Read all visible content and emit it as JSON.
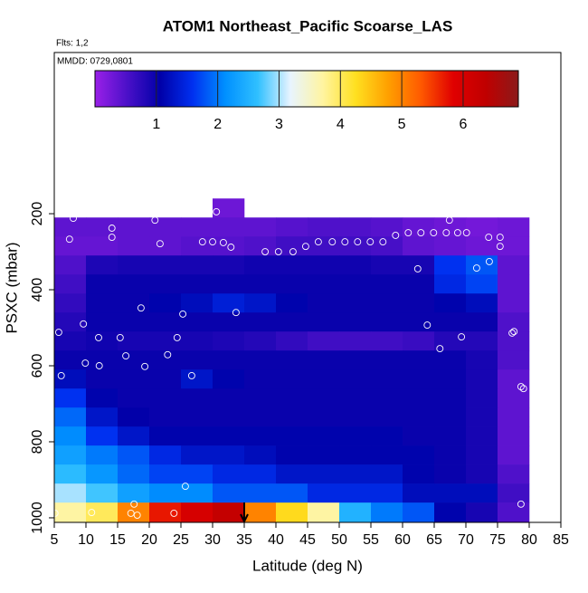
{
  "chart_data": {
    "type": "heatmap",
    "title": "ATOM1 Northeast_Pacific Scoarse_LAS",
    "subtitle": "Flts: 1,2",
    "annotation": "MMDD: 0729,0801",
    "xlabel": "Latitude (deg N)",
    "ylabel": "PSXC (mbar)",
    "xlim": [
      5,
      85
    ],
    "xticks": [
      5,
      10,
      15,
      20,
      25,
      30,
      35,
      40,
      45,
      50,
      55,
      60,
      65,
      70,
      75,
      80,
      85
    ],
    "ylim": [
      -224,
      1012
    ],
    "y_inverted": true,
    "yticks": [
      200,
      400,
      600,
      800,
      1000
    ],
    "x_edges": [
      5,
      10,
      15,
      20,
      25,
      30,
      35,
      40,
      45,
      50,
      55,
      60,
      65,
      70,
      75,
      80
    ],
    "y_edges": [
      160,
      210,
      260,
      310,
      360,
      410,
      460,
      510,
      560,
      610,
      660,
      710,
      760,
      810,
      860,
      910,
      960,
      1012
    ],
    "z": [
      [
        null,
        null,
        null,
        null,
        null,
        0.3,
        null,
        null,
        null,
        null,
        null,
        null,
        null,
        null,
        null
      ],
      [
        0.4,
        0.4,
        0.4,
        0.4,
        0.4,
        0.4,
        0.4,
        0.45,
        0.5,
        0.5,
        0.45,
        0.35,
        0.3,
        0.25,
        0.3
      ],
      [
        0.35,
        0.35,
        0.4,
        0.4,
        0.45,
        0.45,
        0.5,
        0.6,
        0.6,
        0.6,
        0.55,
        0.4,
        0.35,
        0.3,
        0.3
      ],
      [
        0.5,
        0.85,
        0.9,
        0.9,
        0.9,
        0.9,
        0.95,
        0.95,
        0.95,
        0.95,
        0.9,
        0.9,
        1.6,
        1.8,
        0.4
      ],
      [
        0.6,
        1.0,
        1.0,
        1.0,
        1.0,
        1.0,
        1.0,
        1.0,
        1.0,
        1.0,
        1.0,
        1.0,
        1.5,
        1.7,
        0.4
      ],
      [
        0.7,
        1.0,
        1.0,
        1.1,
        1.2,
        1.4,
        1.3,
        1.1,
        1.0,
        1.0,
        1.0,
        1.0,
        1.1,
        1.2,
        0.4
      ],
      [
        0.8,
        1.0,
        1.0,
        1.0,
        1.0,
        1.0,
        1.0,
        1.0,
        1.0,
        1.0,
        1.0,
        1.0,
        1.0,
        1.0,
        0.5
      ],
      [
        0.9,
        0.95,
        0.9,
        0.9,
        0.9,
        0.85,
        0.8,
        0.7,
        0.6,
        0.6,
        0.6,
        0.65,
        0.8,
        0.8,
        0.5
      ],
      [
        1.0,
        1.0,
        1.0,
        1.0,
        1.0,
        1.0,
        1.0,
        1.0,
        1.0,
        1.0,
        1.0,
        1.0,
        1.0,
        0.9,
        0.5
      ],
      [
        1.2,
        1.0,
        1.0,
        1.0,
        1.3,
        1.1,
        1.0,
        1.0,
        1.0,
        1.0,
        1.0,
        1.0,
        1.0,
        0.9,
        0.4
      ],
      [
        1.6,
        1.1,
        1.0,
        1.0,
        1.0,
        1.0,
        1.0,
        1.0,
        1.0,
        1.0,
        1.0,
        1.0,
        1.0,
        0.9,
        0.4
      ],
      [
        1.9,
        1.3,
        1.05,
        1.0,
        1.0,
        1.0,
        1.0,
        1.0,
        1.0,
        1.0,
        1.0,
        1.0,
        1.0,
        0.9,
        0.4
      ],
      [
        2.1,
        1.6,
        1.3,
        1.1,
        1.1,
        1.1,
        1.1,
        1.1,
        1.1,
        1.1,
        1.1,
        1.0,
        1.0,
        0.9,
        0.4
      ],
      [
        2.3,
        2.0,
        1.8,
        1.5,
        1.3,
        1.3,
        1.2,
        1.1,
        1.1,
        1.1,
        1.1,
        1.1,
        1.0,
        0.9,
        0.4
      ],
      [
        2.6,
        2.2,
        1.9,
        1.7,
        1.7,
        1.5,
        1.5,
        1.3,
        1.3,
        1.3,
        1.3,
        1.1,
        1.0,
        0.9,
        0.5
      ],
      [
        3.0,
        2.7,
        2.3,
        2.1,
        2.1,
        1.8,
        1.8,
        1.8,
        1.5,
        1.5,
        1.5,
        1.2,
        1.2,
        1.2,
        0.6
      ],
      [
        3.7,
        4.0,
        5.0,
        5.7,
        6.0,
        6.3,
        5.0,
        4.3,
        3.7,
        2.5,
        2.0,
        1.8,
        1.1,
        0.9,
        0.5
      ]
    ],
    "colorbar": {
      "lim": [
        0,
        6.9
      ],
      "ticks": [
        1,
        2,
        3,
        4,
        5,
        6
      ]
    },
    "colorscale": [
      "#9a20e8",
      "#4a10c8",
      "#0000a8",
      "#0030f0",
      "#0090ff",
      "#30c0ff",
      "#e8f4ff",
      "#fff4a0",
      "#ffe020",
      "#ffa000",
      "#ff5a00",
      "#e00000",
      "#c00000",
      "#8b1a1a"
    ],
    "points": {
      "x": [
        8.0,
        7.4,
        14.1,
        14.1,
        20.9,
        21.7,
        28.0,
        30.6,
        28.4,
        30.0,
        31.7,
        32.9,
        38.3,
        40.4,
        42.7,
        44.7,
        46.7,
        48.9,
        50.9,
        52.9,
        54.9,
        56.9,
        58.9,
        60.9,
        62.9,
        64.9,
        66.9,
        67.4,
        68.7,
        70.1,
        73.6,
        75.4,
        75.4,
        73.7,
        71.7,
        62.4,
        33.7,
        18.7,
        25.3,
        9.6,
        63.9,
        5.7,
        12.0,
        15.4,
        24.4,
        69.3,
        77.3,
        77.6,
        65.9,
        22.9,
        16.3,
        9.9,
        12.1,
        19.3,
        6.1,
        26.7,
        78.7,
        79.1,
        25.7,
        78.7,
        5.1,
        10.9,
        17.6,
        17.1,
        18.1,
        23.9
      ],
      "y": [
        212,
        267,
        238,
        262,
        217,
        279,
        195,
        195,
        274,
        274,
        276,
        288,
        300,
        300,
        300,
        286,
        274,
        274,
        274,
        274,
        274,
        274,
        257,
        250,
        250,
        250,
        250,
        217,
        250,
        250,
        262,
        262,
        286,
        326,
        343,
        345,
        460,
        448,
        464,
        490,
        493,
        512,
        526,
        526,
        526,
        524,
        514,
        510,
        555,
        571,
        574,
        593,
        600,
        602,
        626,
        626,
        655,
        660,
        917,
        964,
        988,
        986,
        964,
        988,
        993,
        988
      ]
    },
    "arrow_x": 35
  }
}
